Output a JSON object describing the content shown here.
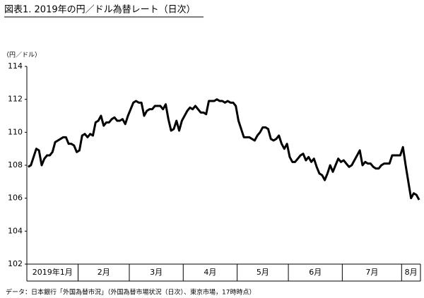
{
  "chart_data": {
    "type": "line",
    "title": "図表1. 2019年の円／ドル為替レート（日次）",
    "y_unit_label": "（円／ドル）",
    "source": "データ：日本銀行「外国為替市況」（外国為替市場状況（日次）、東京市場，17時時点）",
    "color": "#000000",
    "ylim": [
      102,
      114
    ],
    "yticks": [
      102,
      104,
      106,
      108,
      110,
      112,
      114
    ],
    "months": [
      {
        "label": "2019年1月",
        "values": [
          107.9,
          108.0,
          108.5,
          109.0,
          108.9,
          108.0,
          108.4,
          108.6,
          108.6,
          108.8,
          109.4,
          109.5,
          109.6,
          109.7,
          109.7,
          109.3,
          109.3,
          109.2,
          108.8
        ]
      },
      {
        "label": "2月",
        "values": [
          108.9,
          109.8,
          109.9,
          109.7,
          109.9,
          109.8,
          110.6,
          110.7,
          111.0,
          110.4,
          110.6,
          110.6,
          110.8,
          110.9,
          110.7,
          110.7,
          110.8,
          110.5,
          111.0
        ]
      },
      {
        "label": "3月",
        "values": [
          111.4,
          111.8,
          111.9,
          111.8,
          111.8,
          111.0,
          111.3,
          111.4,
          111.4,
          111.6,
          111.6,
          111.6,
          111.4,
          111.7,
          110.8,
          110.1,
          110.2,
          110.7,
          110.1,
          110.7
        ]
      },
      {
        "label": "4月",
        "values": [
          111.0,
          111.3,
          111.5,
          111.4,
          111.6,
          111.4,
          111.2,
          111.2,
          111.1,
          111.9,
          111.9,
          111.9,
          112.0,
          111.9,
          111.9,
          111.8,
          111.9,
          111.8,
          111.8,
          111.6
        ]
      },
      {
        "label": "5月",
        "values": [
          110.7,
          110.2,
          109.7,
          109.7,
          109.7,
          109.6,
          109.5,
          109.8,
          110.0,
          110.3,
          110.3,
          110.2,
          109.6,
          109.5,
          109.6,
          109.8,
          109.3,
          109.0,
          109.3
        ]
      },
      {
        "label": "6月",
        "values": [
          108.5,
          108.2,
          108.2,
          108.4,
          108.6,
          108.7,
          108.3,
          108.5,
          108.2,
          108.4,
          107.9,
          107.5,
          107.4,
          107.1,
          107.5,
          108.0,
          107.6,
          108.0,
          108.4,
          108.2
        ]
      },
      {
        "label": "7月",
        "values": [
          108.3,
          108.1,
          107.9,
          108.0,
          108.3,
          108.6,
          108.9,
          108.0,
          108.2,
          108.1,
          108.1,
          107.9,
          107.8,
          107.8,
          108.0,
          108.1,
          108.1,
          108.1,
          108.6,
          108.6,
          108.6,
          108.6
        ]
      },
      {
        "label": "8月",
        "values": [
          109.1,
          108.0,
          107.0,
          106.0,
          106.3,
          106.2,
          105.9
        ]
      }
    ]
  }
}
